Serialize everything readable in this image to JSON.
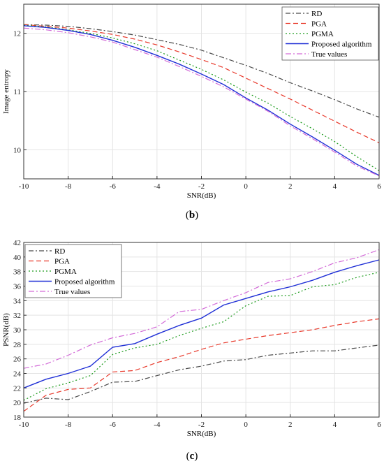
{
  "panels": [
    {
      "label_open": "(",
      "label_letter": "b",
      "label_close": ")"
    },
    {
      "label_open": "(",
      "label_letter": "c",
      "label_close": ")"
    }
  ],
  "colors": {
    "RD": "#4a4a4a",
    "PGA": "#e8382a",
    "PGMA": "#1a9a1a",
    "Proposed": "#1f2fd6",
    "True": "#d36bd8"
  },
  "chart_data": [
    {
      "type": "line",
      "xlabel": "SNR(dB)",
      "ylabel": "Image entropy",
      "xlim": [
        -10,
        6
      ],
      "ylim": [
        9.5,
        12.5
      ],
      "xticks": [
        "-10",
        "-8",
        "-6",
        "-4",
        "-2",
        "0",
        "2",
        "4",
        "6"
      ],
      "yticks": [
        "10",
        "11",
        "12"
      ],
      "grid": true,
      "legend_position": "top-right",
      "x": [
        -10,
        -9,
        -8,
        -7,
        -6,
        -5,
        -4,
        -3,
        -2,
        -1,
        0,
        1,
        2,
        3,
        4,
        5,
        6
      ],
      "series": [
        {
          "name": "RD",
          "style": "dashdot",
          "color_key": "RD",
          "values": [
            12.15,
            12.14,
            12.12,
            12.08,
            12.03,
            11.97,
            11.89,
            11.81,
            11.71,
            11.58,
            11.45,
            11.31,
            11.15,
            11.01,
            10.86,
            10.7,
            10.56
          ]
        },
        {
          "name": "PGA",
          "style": "dashed",
          "color_key": "PGA",
          "values": [
            12.15,
            12.12,
            12.09,
            12.04,
            11.98,
            11.9,
            11.8,
            11.68,
            11.55,
            11.41,
            11.23,
            11.05,
            10.87,
            10.68,
            10.49,
            10.3,
            10.12
          ]
        },
        {
          "name": "PGMA",
          "style": "dotted",
          "color_key": "PGMA",
          "values": [
            12.14,
            12.11,
            12.06,
            12.0,
            11.92,
            11.82,
            11.7,
            11.54,
            11.38,
            11.2,
            10.99,
            10.8,
            10.57,
            10.36,
            10.14,
            9.88,
            9.64
          ]
        },
        {
          "name": "Proposed algorithm",
          "style": "solid",
          "color_key": "Proposed",
          "values": [
            12.13,
            12.1,
            12.05,
            11.98,
            11.88,
            11.76,
            11.62,
            11.47,
            11.3,
            11.12,
            10.89,
            10.68,
            10.44,
            10.22,
            9.99,
            9.75,
            9.56
          ]
        },
        {
          "name": "True values",
          "style": "dashdot2",
          "color_key": "True",
          "values": [
            12.09,
            12.06,
            12.01,
            11.94,
            11.85,
            11.72,
            11.59,
            11.43,
            11.26,
            11.08,
            10.87,
            10.66,
            10.41,
            10.19,
            9.96,
            9.72,
            9.55
          ]
        }
      ]
    },
    {
      "type": "line",
      "xlabel": "SNR(dB)",
      "ylabel": "PSNR(dB)",
      "xlim": [
        -10,
        6
      ],
      "ylim": [
        18,
        42
      ],
      "xticks": [
        "-10",
        "-8",
        "-6",
        "-4",
        "-2",
        "0",
        "2",
        "4",
        "6"
      ],
      "yticks": [
        "18",
        "20",
        "22",
        "24",
        "26",
        "28",
        "30",
        "32",
        "34",
        "36",
        "38",
        "40",
        "42"
      ],
      "grid": true,
      "legend_position": "top-left",
      "x": [
        -10,
        -9,
        -8,
        -7,
        -6,
        -5,
        -4,
        -3,
        -2,
        -1,
        0,
        1,
        2,
        3,
        4,
        5,
        6
      ],
      "series": [
        {
          "name": "RD",
          "style": "dashdot",
          "color_key": "RD",
          "values": [
            19.9,
            20.6,
            20.4,
            21.5,
            22.8,
            22.9,
            23.7,
            24.5,
            25.0,
            25.7,
            25.9,
            26.5,
            26.8,
            27.1,
            27.1,
            27.5,
            27.9
          ]
        },
        {
          "name": "PGA",
          "style": "dashed",
          "color_key": "PGA",
          "values": [
            18.8,
            21.0,
            21.8,
            22.0,
            24.2,
            24.4,
            25.5,
            26.3,
            27.3,
            28.2,
            28.7,
            29.2,
            29.6,
            30.0,
            30.6,
            31.1,
            31.5
          ]
        },
        {
          "name": "PGMA",
          "style": "dotted",
          "color_key": "PGMA",
          "values": [
            20.3,
            21.9,
            22.7,
            23.7,
            26.6,
            27.5,
            28.0,
            29.2,
            30.2,
            31.1,
            33.3,
            34.6,
            34.7,
            35.9,
            36.2,
            37.2,
            37.9
          ]
        },
        {
          "name": "Proposed algorithm",
          "style": "solid",
          "color_key": "Proposed",
          "values": [
            22.0,
            23.2,
            24.0,
            25.0,
            27.6,
            28.1,
            29.4,
            30.6,
            31.6,
            33.4,
            34.3,
            35.2,
            35.9,
            36.8,
            37.9,
            38.8,
            39.6
          ]
        },
        {
          "name": "True values",
          "style": "dashdot2",
          "color_key": "True",
          "values": [
            24.7,
            25.3,
            26.5,
            27.9,
            28.9,
            29.5,
            30.4,
            32.5,
            32.8,
            34.0,
            35.1,
            36.5,
            37.0,
            38.0,
            39.2,
            39.9,
            41.0
          ]
        }
      ]
    }
  ]
}
